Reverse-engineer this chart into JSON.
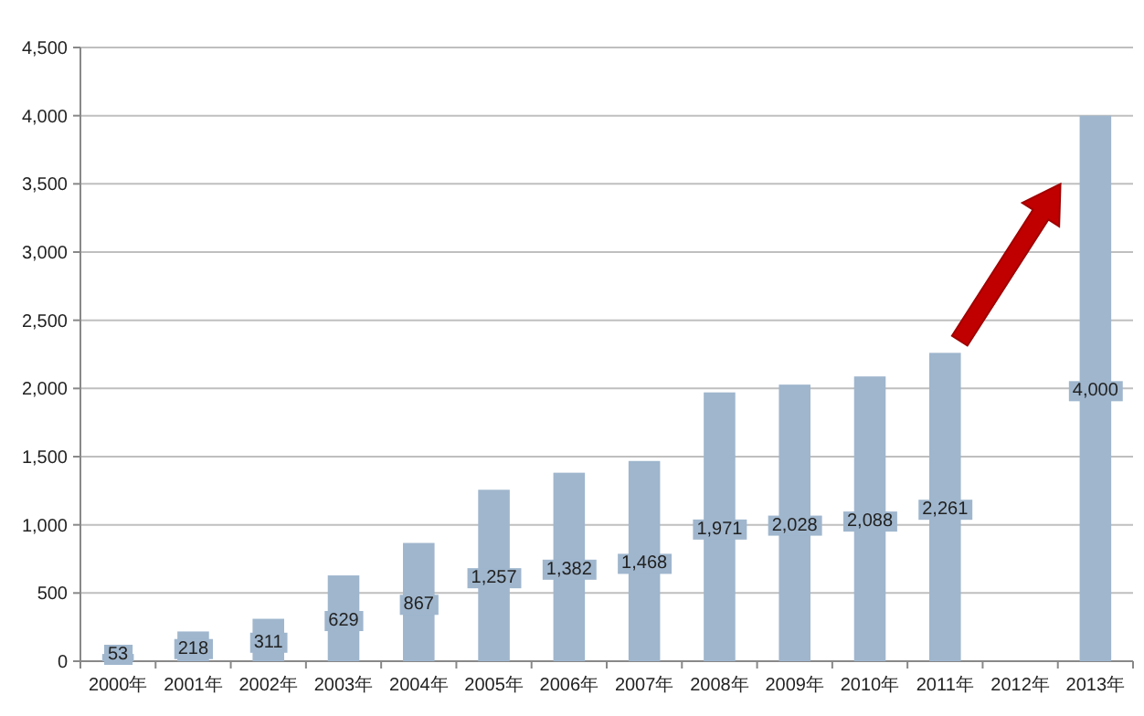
{
  "chart_data": {
    "type": "bar",
    "categories": [
      "2000年",
      "2001年",
      "2002年",
      "2003年",
      "2004年",
      "2005年",
      "2006年",
      "2007年",
      "2008年",
      "2009年",
      "2010年",
      "2011年",
      "2012年",
      "2013年"
    ],
    "values": [
      53,
      218,
      311,
      629,
      867,
      1257,
      1382,
      1468,
      1971,
      2028,
      2088,
      2261,
      null,
      4000
    ],
    "value_labels": [
      "53",
      "218",
      "311",
      "629",
      "867",
      "1,257",
      "1,382",
      "1,468",
      "1,971",
      "2,028",
      "2,088",
      "2,261",
      null,
      "4,000"
    ],
    "color": "#9fb6cd",
    "ylim": [
      0,
      4500
    ],
    "yticks": [
      0,
      {
        "value": 500,
        "label": "500"
      },
      {
        "value": 1000,
        "label": "1,000"
      },
      {
        "value": 1500,
        "label": "1,500"
      },
      {
        "value": 2000,
        "label": "2,000"
      },
      {
        "value": 2500,
        "label": "2,500"
      },
      {
        "value": 3000,
        "label": "3,000"
      },
      {
        "value": 3500,
        "label": "3,500"
      },
      {
        "value": 4000,
        "label": "4,000"
      },
      {
        "value": 4500,
        "label": "4,500"
      }
    ],
    "grid": "y"
  }
}
